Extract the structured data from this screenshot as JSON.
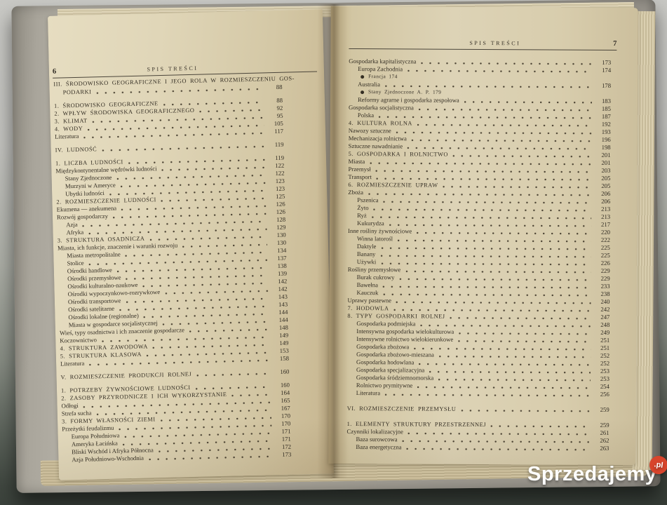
{
  "left_page": {
    "number": "6",
    "header": "SPIS TREŚCI",
    "entries": [
      {
        "t": "III. ŚRODOWISKO GEOGRAFICZNE I JEGO ROLA W ROZMIESZCZENIU GOS-",
        "p": "",
        "caps": true
      },
      {
        "t": "PODARKI",
        "p": "88",
        "caps": true,
        "i": 1
      },
      {
        "t": "1. ŚRODOWISKO GEOGRAFICZNE",
        "p": "88",
        "caps": true,
        "gap": true
      },
      {
        "t": "2. WPŁYW ŚRODOWISKA GEOGRAFICZNEGO",
        "p": "92",
        "caps": true
      },
      {
        "t": "3. KLIMAT",
        "p": "95",
        "caps": true
      },
      {
        "t": "4. WODY",
        "p": "105",
        "caps": true
      },
      {
        "t": "Literatura",
        "p": "117"
      },
      {
        "t": "IV. LUDNOŚĆ",
        "p": "119",
        "caps": true,
        "gap": true
      },
      {
        "t": "1. LICZBA LUDNOŚCI",
        "p": "119",
        "caps": true,
        "gap": true
      },
      {
        "t": "Międzykontynentalne wędrówki ludności",
        "p": "122"
      },
      {
        "t": "Stany Zjednoczone",
        "p": "122",
        "i": 1
      },
      {
        "t": "Murzyni w Ameryce",
        "p": "123",
        "i": 1
      },
      {
        "t": "Ubytki ludności",
        "p": "123",
        "i": 1
      },
      {
        "t": "2. ROZMIESZCZENIE LUDNOŚCI",
        "p": "125",
        "caps": true
      },
      {
        "t": "Ekumena — anekumena",
        "p": "126"
      },
      {
        "t": "Rozwój gospodarczy",
        "p": "126"
      },
      {
        "t": "Azja",
        "p": "128",
        "i": 1
      },
      {
        "t": "Afryka",
        "p": "129",
        "i": 1
      },
      {
        "t": "3. STRUKTURA OSADNICZA",
        "p": "130",
        "caps": true
      },
      {
        "t": "Miasta, ich funkcje, znaczenie i warunki rozwoju",
        "p": "130"
      },
      {
        "t": "Miasta metropolitalne",
        "p": "134",
        "i": 1
      },
      {
        "t": "Stolice",
        "p": "137",
        "i": 1
      },
      {
        "t": "Ośrodki handlowe",
        "p": "138",
        "i": 1
      },
      {
        "t": "Ośrodki przemysłowe",
        "p": "139",
        "i": 1
      },
      {
        "t": "Ośrodki kulturalno-naukowe",
        "p": "142",
        "i": 1
      },
      {
        "t": "Ośrodki wypoczynkowo-rozrywkowe",
        "p": "142",
        "i": 1
      },
      {
        "t": "Ośrodki transportowe",
        "p": "143",
        "i": 1
      },
      {
        "t": "Ośrodki satelitarne",
        "p": "143",
        "i": 1
      },
      {
        "t": "Ośrodki lokalne (regionalne)",
        "p": "144",
        "i": 1
      },
      {
        "t": "Miasta w gospodarce socjalistycznej",
        "p": "144",
        "i": 1
      },
      {
        "t": "Wieś, typy osadnictwa i ich znaczenie gospodarcze",
        "p": "148"
      },
      {
        "t": "Koczownictwo",
        "p": "149"
      },
      {
        "t": "4. STRUKTURA ZAWODOWA",
        "p": "149",
        "caps": true
      },
      {
        "t": "5. STRUKTURA KLASOWA",
        "p": "153",
        "caps": true
      },
      {
        "t": "Literatura",
        "p": "158"
      },
      {
        "t": "V. ROZMIESZCZENIE PRODUKCJI ROLNEJ",
        "p": "160",
        "caps": true,
        "gap": true
      },
      {
        "t": "1. POTRZEBY ŻYWNOŚCIOWE LUDNOŚCI",
        "p": "160",
        "caps": true,
        "gap": true
      },
      {
        "t": "2. ZASOBY PRZYRODNICZE I ICH WYKORZYSTANIE",
        "p": "164",
        "caps": true
      },
      {
        "t": "Odłogi",
        "p": "165"
      },
      {
        "t": "Strefa sucha",
        "p": "167"
      },
      {
        "t": "3. FORMY WŁASNOŚCI ZIEMI",
        "p": "170",
        "caps": true
      },
      {
        "t": "Przeżytki feudalizmu",
        "p": "170"
      },
      {
        "t": "Europa Południowa",
        "p": "171",
        "i": 1
      },
      {
        "t": "Ameryka Łacińska",
        "p": "171",
        "i": 1
      },
      {
        "t": "Bliski Wschód i Afryka Północna",
        "p": "172",
        "i": 1
      },
      {
        "t": "Azja Południowo-Wschodnia",
        "p": "173",
        "i": 1
      }
    ]
  },
  "right_page": {
    "number": "7",
    "header": "SPIS TREŚCI",
    "entries": [
      {
        "t": "Gospodarka kapitalistyczna",
        "p": "173"
      },
      {
        "t": "Europa Zachodnia",
        "p": "174",
        "i": 1
      },
      {
        "t": "Francja 174",
        "bullet": true
      },
      {
        "t": "Australia",
        "p": "178",
        "i": 1
      },
      {
        "t": "Stany Zjednoczone A. P. 179",
        "bullet": true
      },
      {
        "t": "Reformy agrarne i gospodarka zespołowa",
        "p": "183",
        "i": 1
      },
      {
        "t": "Gospodarka socjalistyczna",
        "p": "185"
      },
      {
        "t": "Polska",
        "p": "187",
        "i": 1
      },
      {
        "t": "4. KULTURA ROLNA",
        "p": "192",
        "caps": true
      },
      {
        "t": "Nawozy sztuczne",
        "p": "193"
      },
      {
        "t": "Mechanizacja rolnictwa",
        "p": "196"
      },
      {
        "t": "Sztuczne nawadnianie",
        "p": "198"
      },
      {
        "t": "5. GOSPODARKA I ROLNICTWO",
        "p": "201",
        "caps": true
      },
      {
        "t": "Miasta",
        "p": "201"
      },
      {
        "t": "Przemysł",
        "p": "203"
      },
      {
        "t": "Transport",
        "p": "205"
      },
      {
        "t": "6. ROZMIESZCZENIE UPRAW",
        "p": "205",
        "caps": true
      },
      {
        "t": "Zboża",
        "p": "206"
      },
      {
        "t": "Pszenica",
        "p": "206",
        "i": 1
      },
      {
        "t": "Żyto",
        "p": "213",
        "i": 1
      },
      {
        "t": "Ryż",
        "p": "213",
        "i": 1
      },
      {
        "t": "Kukurydza",
        "p": "217",
        "i": 1
      },
      {
        "t": "Inne rośliny żywnościowe",
        "p": "220"
      },
      {
        "t": "Winna latorośl",
        "p": "222",
        "i": 1
      },
      {
        "t": "Daktyle",
        "p": "225",
        "i": 1
      },
      {
        "t": "Banany",
        "p": "225",
        "i": 1
      },
      {
        "t": "Używki",
        "p": "226",
        "i": 1
      },
      {
        "t": "Rośliny przemysłowe",
        "p": "229"
      },
      {
        "t": "Burak cukrowy",
        "p": "229",
        "i": 1
      },
      {
        "t": "Bawełna",
        "p": "233",
        "i": 1
      },
      {
        "t": "Kauczuk",
        "p": "238",
        "i": 1
      },
      {
        "t": "Uprawy pastewne",
        "p": "240"
      },
      {
        "t": "7. HODOWLA",
        "p": "242",
        "caps": true
      },
      {
        "t": "8. TYPY GOSPODARKI ROLNEJ",
        "p": "247",
        "caps": true
      },
      {
        "t": "Gospodarka podmiejska",
        "p": "248",
        "i": 1
      },
      {
        "t": "Intensywna gospodarka wielokulturowa",
        "p": "249",
        "i": 1
      },
      {
        "t": "Intensywne rolnictwo wielokierunkowe",
        "p": "251",
        "i": 1
      },
      {
        "t": "Gospodarka zbożowa",
        "p": "251",
        "i": 1
      },
      {
        "t": "Gospodarka zbożowo-mieszana",
        "p": "252",
        "i": 1
      },
      {
        "t": "Gospodarka hodowlana",
        "p": "252",
        "i": 1
      },
      {
        "t": "Gospodarka specjalizacyjna",
        "p": "253",
        "i": 1
      },
      {
        "t": "Gospodarka śródziemnomorska",
        "p": "253",
        "i": 1
      },
      {
        "t": "Rolnictwo prymitywne",
        "p": "254",
        "i": 1
      },
      {
        "t": "Literatura",
        "p": "256",
        "i": 1
      },
      {
        "t": "VI. ROZMIESZCZENIE PRZEMYSŁU",
        "p": "259",
        "caps": true,
        "gap": true
      },
      {
        "t": "1. ELEMENTY STRUKTURY PRZESTRZENNEJ",
        "p": "259",
        "caps": true,
        "gap": true
      },
      {
        "t": "Czynniki lokalizacyjne",
        "p": "261"
      },
      {
        "t": "Baza surowcowa",
        "p": "262",
        "i": 1
      },
      {
        "t": "Baza energetyczna",
        "p": "263",
        "i": 1
      }
    ]
  },
  "watermark": {
    "brand": "Sprzedajemy",
    "tld": ".pl",
    "badge_color": "#d8452c"
  }
}
